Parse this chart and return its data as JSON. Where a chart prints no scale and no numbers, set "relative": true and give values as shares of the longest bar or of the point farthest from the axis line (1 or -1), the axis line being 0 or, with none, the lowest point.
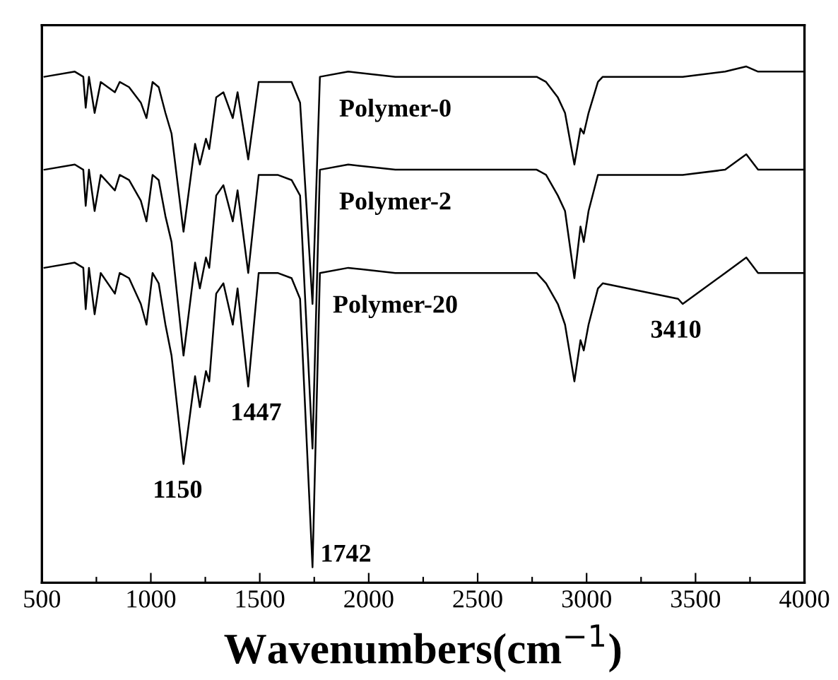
{
  "chart_data": {
    "type": "line",
    "relative": true,
    "xlabel": "Wavenumbers(cm$^{−1}$)",
    "x": [
      511,
      651,
      690,
      701,
      716,
      742,
      770,
      835,
      857,
      900,
      954,
      980,
      1008,
      1036,
      1067,
      1095,
      1150,
      1203,
      1225,
      1253,
      1268,
      1300,
      1333,
      1376,
      1398,
      1447,
      1495,
      1582,
      1646,
      1685,
      1742,
      1776,
      1906,
      2122,
      2771,
      2814,
      2868,
      2901,
      2944,
      2972,
      2987,
      3009,
      3052,
      3074,
      3420,
      3441,
      3636,
      3733,
      3787,
      3999
    ],
    "series": [
      {
        "name": "Polymer-0",
        "color": "#000000",
        "values": [
          0.98,
          0.99,
          0.98,
          0.92,
          0.98,
          0.91,
          0.97,
          0.95,
          0.97,
          0.96,
          0.93,
          0.9,
          0.97,
          0.96,
          0.91,
          0.87,
          0.68,
          0.85,
          0.81,
          0.86,
          0.84,
          0.94,
          0.95,
          0.9,
          0.95,
          0.82,
          0.97,
          0.97,
          0.97,
          0.93,
          0.54,
          0.98,
          0.99,
          0.98,
          0.98,
          0.97,
          0.94,
          0.91,
          0.81,
          0.88,
          0.87,
          0.91,
          0.97,
          0.98,
          0.98,
          0.98,
          0.99,
          1.0,
          0.99,
          0.99
        ]
      },
      {
        "name": "Polymer-2",
        "color": "#000000",
        "values": [
          0.8,
          0.81,
          0.8,
          0.73,
          0.8,
          0.72,
          0.79,
          0.76,
          0.79,
          0.78,
          0.74,
          0.7,
          0.79,
          0.78,
          0.71,
          0.66,
          0.44,
          0.62,
          0.57,
          0.63,
          0.61,
          0.75,
          0.77,
          0.7,
          0.76,
          0.6,
          0.79,
          0.79,
          0.78,
          0.75,
          0.26,
          0.8,
          0.81,
          0.8,
          0.8,
          0.79,
          0.75,
          0.72,
          0.59,
          0.69,
          0.66,
          0.72,
          0.79,
          0.79,
          0.79,
          0.79,
          0.8,
          0.83,
          0.8,
          0.8
        ]
      },
      {
        "name": "Polymer-20",
        "color": "#000000",
        "values": [
          0.61,
          0.62,
          0.61,
          0.53,
          0.61,
          0.52,
          0.6,
          0.56,
          0.6,
          0.59,
          0.54,
          0.5,
          0.6,
          0.58,
          0.5,
          0.44,
          0.23,
          0.4,
          0.34,
          0.41,
          0.39,
          0.56,
          0.58,
          0.5,
          0.57,
          0.38,
          0.6,
          0.6,
          0.59,
          0.55,
          0.03,
          0.6,
          0.61,
          0.6,
          0.6,
          0.58,
          0.54,
          0.5,
          0.39,
          0.47,
          0.45,
          0.5,
          0.57,
          0.58,
          0.55,
          0.54,
          0.6,
          0.63,
          0.6,
          0.6
        ]
      }
    ],
    "annotations": [
      {
        "text": "1150",
        "x": 1150,
        "y": 0.23
      },
      {
        "text": "1447",
        "x": 1447,
        "y": 0.38
      },
      {
        "text": "1742",
        "x": 1742,
        "y": 0.03
      },
      {
        "text": "3410",
        "x": 3410,
        "y": 0.54
      }
    ],
    "xlim": [
      500,
      4000
    ],
    "xticks": [
      500,
      {
        "value": 750,
        "label": null
      },
      1000,
      {
        "value": 1250,
        "label": null
      },
      1500,
      {
        "value": 1750,
        "label": null
      },
      2000,
      {
        "value": 2250,
        "label": null
      },
      2500,
      {
        "value": 2750,
        "label": null
      },
      3000,
      {
        "value": 3250,
        "label": null
      },
      3500,
      {
        "value": 3750,
        "label": null
      },
      4000
    ],
    "tick_labels": "x",
    "grid": false,
    "legend": false,
    "marker": "none",
    "line_style": "solid"
  }
}
